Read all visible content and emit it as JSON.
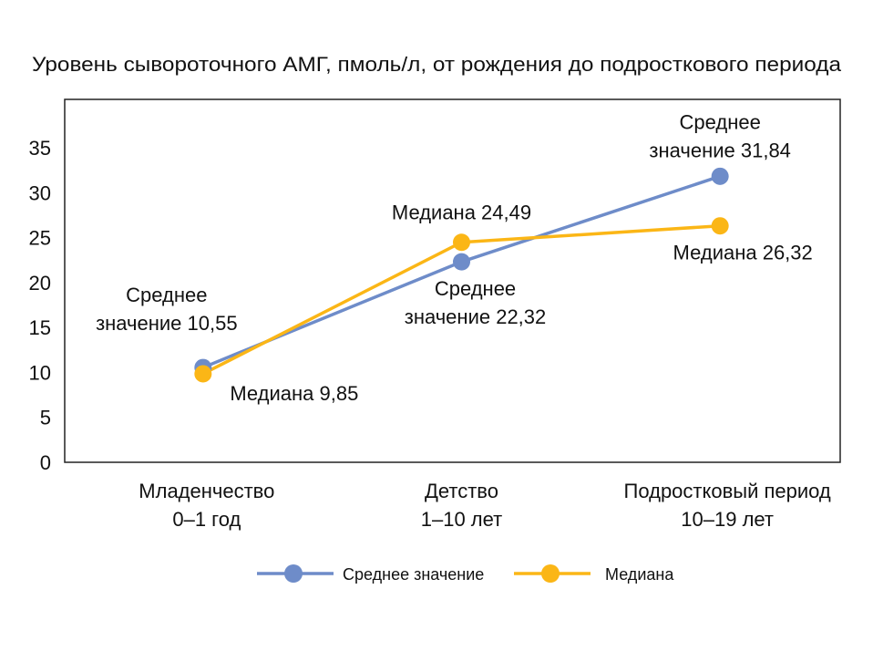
{
  "chart_data": {
    "type": "line",
    "title": "Уровень сывороточного АМГ, пмоль/л, от рождения до подросткового периода",
    "xlabel": "",
    "ylabel": "",
    "categories": [
      [
        "Младенчество",
        "0–1 год"
      ],
      [
        "Детство",
        "1–10 лет"
      ],
      [
        "Подростковый период",
        "10–19 лет"
      ]
    ],
    "ylim": [
      0,
      40.4
    ],
    "yticks": [
      0,
      5,
      10,
      15,
      20,
      25,
      30,
      35
    ],
    "grid": false,
    "legend_position": "bottom",
    "series": [
      {
        "name": "Среднее значение",
        "color": "#6E8CC9",
        "values": [
          10.55,
          22.32,
          31.84
        ],
        "labels": [
          [
            "Среднее",
            "значение 10,55"
          ],
          [
            "Среднее",
            "значение 22,32"
          ],
          [
            "Среднее",
            "значение 31,84"
          ]
        ]
      },
      {
        "name": "Медиана",
        "color": "#FBB616",
        "values": [
          9.85,
          24.49,
          26.32
        ],
        "labels": [
          [
            "Медиана 9,85"
          ],
          [
            "Медиана 24,49"
          ],
          [
            "Медиана 26,32"
          ]
        ]
      }
    ]
  }
}
